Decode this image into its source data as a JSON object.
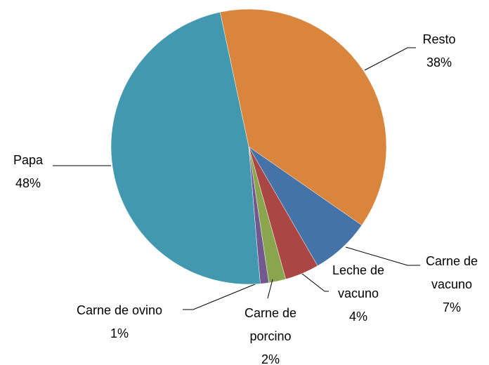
{
  "chart_data": {
    "type": "pie",
    "categories": [
      "Resto",
      "Carne de vacuno",
      "Leche de vacuno",
      "Carne de porcino",
      "Carne de ovino",
      "Papa"
    ],
    "values": [
      38,
      7,
      4,
      2,
      1,
      48
    ],
    "value_labels": [
      "38%",
      "7%",
      "4%",
      "2%",
      "1%",
      "48%"
    ],
    "colors": [
      "#d9853b",
      "#4572a7",
      "#aa4643",
      "#89a54e",
      "#71588f",
      "#4198af"
    ]
  }
}
